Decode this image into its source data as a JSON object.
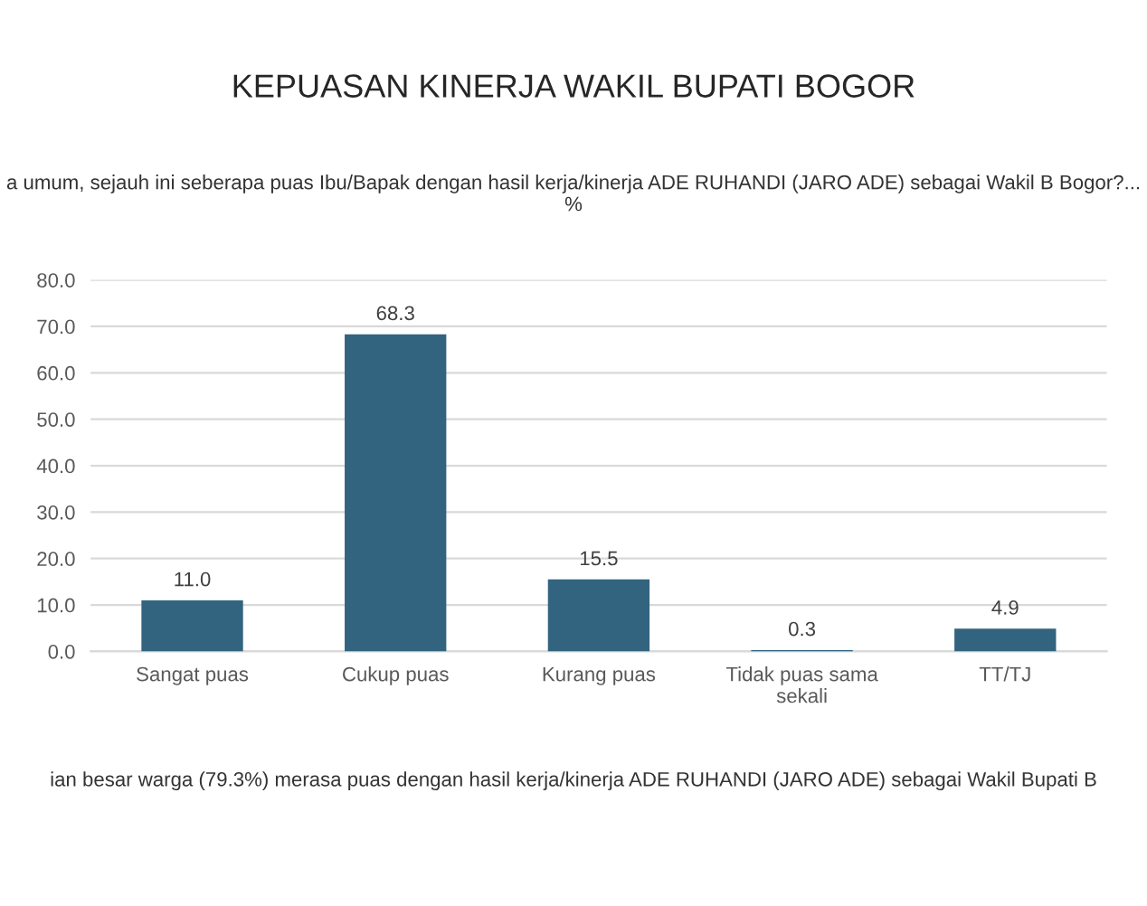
{
  "chart_data": {
    "type": "bar",
    "title": "KEPUASAN KINERJA WAKIL BUPATI BOGOR",
    "subtitle": "a umum, sejauh ini seberapa puas Ibu/Bapak dengan hasil kerja/kinerja ADE RUHANDI (JARO ADE) sebagai Wakil B Bogor?... %",
    "categories": [
      "Sangat puas",
      "Cukup puas",
      "Kurang puas",
      "Tidak puas sama sekali",
      "TT/TJ"
    ],
    "values": [
      11.0,
      68.3,
      15.5,
      0.3,
      4.9
    ],
    "value_labels": [
      "11.0",
      "68.3",
      "15.5",
      "0.3",
      "4.9"
    ],
    "color": "#32647f",
    "ylim": [
      0,
      80
    ],
    "yticks": [
      {
        "value": 0,
        "label": "0.0"
      },
      {
        "value": 10,
        "label": "10.0"
      },
      {
        "value": 20,
        "label": "20.0"
      },
      {
        "value": 30,
        "label": "30.0"
      },
      {
        "value": 40,
        "label": "40.0"
      },
      {
        "value": 50,
        "label": "50.0"
      },
      {
        "value": 60,
        "label": "60.0"
      },
      {
        "value": 70,
        "label": "70.0"
      },
      {
        "value": 80,
        "label": "80.0"
      }
    ],
    "grid": "y",
    "annotations": [
      "ian besar warga (79.3%) merasa puas dengan hasil kerja/kinerja ADE RUHANDI (JARO ADE) sebagai Wakil Bupati B"
    ]
  }
}
